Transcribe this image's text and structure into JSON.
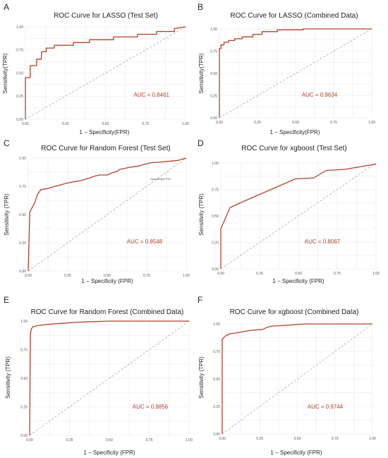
{
  "colors": {
    "curve": "#b5412a",
    "auc_text": "#b5412a",
    "diagonal": "#9a9a9a",
    "grid": "#e8e8e8"
  },
  "chart_data": [
    {
      "panel": "A",
      "type": "line",
      "title": "ROC Curve for LASSO (Test Set)",
      "xlabel": "1 − Specificity(FPR)",
      "ylabel": "Sensitivity(TPR)",
      "xlim": [
        0,
        1
      ],
      "ylim": [
        0,
        1
      ],
      "grid": true,
      "xticks": [
        "0.00",
        "0.25",
        "0.50",
        "0.75",
        "1.00"
      ],
      "yticks": [
        "0.00",
        "0.25",
        "0.50",
        "0.75",
        "1.00"
      ],
      "auc_label": "AUC = 0.8461",
      "series": [
        {
          "x": [
            0,
            0,
            0.03,
            0.03,
            0.07,
            0.07,
            0.1,
            0.1,
            0.13,
            0.13,
            0.18,
            0.18,
            0.3,
            0.3,
            0.4,
            0.4,
            0.55,
            0.55,
            0.7,
            0.7,
            0.82,
            0.82,
            0.93,
            0.93,
            1
          ],
          "y": [
            0,
            0.45,
            0.45,
            0.58,
            0.58,
            0.65,
            0.65,
            0.73,
            0.73,
            0.77,
            0.77,
            0.8,
            0.8,
            0.83,
            0.83,
            0.86,
            0.86,
            0.89,
            0.89,
            0.92,
            0.92,
            0.95,
            0.95,
            0.98,
            1
          ]
        }
      ]
    },
    {
      "panel": "B",
      "type": "line",
      "title": "ROC Curve for LASSO (Combined Data)",
      "xlabel": "1 − Specificity(FPR)",
      "ylabel": "Sensitivity(TPR)",
      "xlim": [
        0,
        1
      ],
      "ylim": [
        0,
        1
      ],
      "grid": true,
      "xticks": [
        "0.00",
        "0.25",
        "0.50",
        "0.75",
        "1.00"
      ],
      "yticks": [
        "0.00",
        "0.25",
        "0.50",
        "0.75",
        "1.00"
      ],
      "auc_label": "AUC = 0.9634",
      "series": [
        {
          "x": [
            0,
            0,
            0.01,
            0.01,
            0.03,
            0.03,
            0.06,
            0.06,
            0.1,
            0.1,
            0.15,
            0.15,
            0.22,
            0.22,
            0.28,
            0.28,
            0.38,
            0.38,
            0.55,
            0.55,
            1
          ],
          "y": [
            0,
            0.78,
            0.78,
            0.82,
            0.82,
            0.85,
            0.85,
            0.87,
            0.87,
            0.89,
            0.89,
            0.91,
            0.91,
            0.94,
            0.94,
            0.97,
            0.97,
            0.99,
            0.99,
            1.0,
            1.0
          ]
        }
      ]
    },
    {
      "panel": "C",
      "type": "line",
      "title": "ROC Curve for Random Forest (Test Set)",
      "xlabel": "1 − Specificity (FPR)",
      "ylabel": "Sensitivity (TPR)",
      "xlim": [
        0,
        1
      ],
      "ylim": [
        0,
        1
      ],
      "grid": true,
      "xticks": [
        "0.00",
        "0.25",
        "0.50",
        "0.75",
        "1.00"
      ],
      "yticks": [
        "0.00",
        "0.25",
        "0.50",
        "0.75",
        "1.00"
      ],
      "auc_label": "AUC = 0.8548",
      "legend_text": "Specificity(FPR)",
      "series": [
        {
          "x": [
            0,
            0.01,
            0.02,
            0.04,
            0.06,
            0.08,
            0.12,
            0.17,
            0.25,
            0.33,
            0.38,
            0.42,
            0.45,
            0.5,
            0.53,
            0.56,
            0.58,
            0.65,
            0.7,
            0.75,
            0.78,
            0.8,
            0.88,
            0.95,
            1
          ],
          "y": [
            0,
            0.52,
            0.55,
            0.6,
            0.68,
            0.72,
            0.73,
            0.75,
            0.78,
            0.8,
            0.82,
            0.84,
            0.85,
            0.85,
            0.87,
            0.88,
            0.9,
            0.92,
            0.93,
            0.95,
            0.96,
            0.96,
            0.97,
            0.98,
            1
          ]
        }
      ]
    },
    {
      "panel": "D",
      "type": "line",
      "title": "ROC Curve for xgboost (Test Set)",
      "xlabel": "1 − Specificity (FPR)",
      "ylabel": "Sensitivity (TPR)",
      "xlim": [
        0,
        1
      ],
      "ylim": [
        0,
        1
      ],
      "grid": true,
      "xticks": [
        "0.00",
        "0.25",
        "0.50",
        "0.75",
        "1.00"
      ],
      "yticks": [
        "0.00",
        "0.25",
        "0.50",
        "0.75",
        "1.00"
      ],
      "auc_label": "AUC = 0.8067",
      "series": [
        {
          "x": [
            0,
            0,
            0.03,
            0.06,
            0.09,
            0.12,
            0.48,
            0.6,
            0.68,
            0.8,
            1
          ],
          "y": [
            0,
            0.38,
            0.48,
            0.58,
            0.6,
            0.62,
            0.85,
            0.86,
            0.93,
            0.94,
            0.99
          ]
        }
      ]
    },
    {
      "panel": "E",
      "type": "line",
      "title": "ROC Curve for Random Forest (Combined Data)",
      "xlabel": "1 − Specificity (FPR)",
      "ylabel": "Sensitivity (TPR)",
      "xlim": [
        0,
        1
      ],
      "ylim": [
        0,
        1
      ],
      "grid": true,
      "xticks": [
        "0.00",
        "0.25",
        "0.50",
        "0.75",
        "1.00"
      ],
      "yticks": [
        "0.00",
        "0.25",
        "0.50",
        "0.75",
        "1.00"
      ],
      "auc_label": "AUC = 0.9856",
      "series": [
        {
          "x": [
            0,
            0.005,
            0.01,
            0.02,
            0.05,
            0.1,
            0.2,
            0.3,
            0.4,
            0.5,
            1
          ],
          "y": [
            0,
            0.88,
            0.93,
            0.95,
            0.96,
            0.97,
            0.98,
            0.99,
            0.995,
            1,
            1
          ]
        }
      ]
    },
    {
      "panel": "F",
      "type": "line",
      "title": "ROC Curve for xgboost (Combined Data)",
      "xlabel": "1 − Specificity (FPR)",
      "ylabel": "Sensitivity (TPR)",
      "xlim": [
        0,
        1
      ],
      "ylim": [
        0,
        1
      ],
      "grid": true,
      "xticks": [
        "0.00",
        "0.25",
        "0.50",
        "0.75",
        "1.00"
      ],
      "yticks": [
        "0.00",
        "0.25",
        "0.50",
        "0.75",
        "1.00"
      ],
      "auc_label": "AUC = 0.9744",
      "series": [
        {
          "x": [
            0,
            0,
            0.02,
            0.05,
            0.1,
            0.18,
            0.27,
            0.3,
            0.33,
            0.45,
            0.55,
            1
          ],
          "y": [
            0,
            0.86,
            0.89,
            0.91,
            0.92,
            0.94,
            0.95,
            0.97,
            0.98,
            0.99,
            1,
            1
          ]
        }
      ]
    }
  ]
}
